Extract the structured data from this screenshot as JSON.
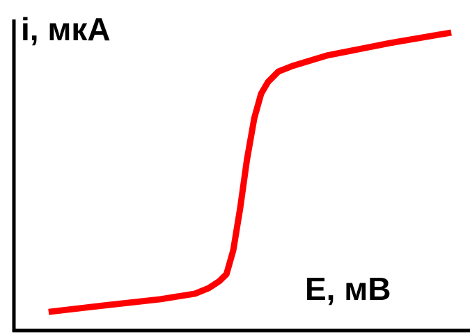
{
  "chart_data": {
    "type": "line",
    "ylabel": "i, мкА",
    "xlabel": "E, мВ",
    "xlim": [
      0,
      100
    ],
    "ylim": [
      0,
      100
    ],
    "series": [
      {
        "color": "#ff0000",
        "x": [
          7.6,
          19.8,
          32.1,
          39.7,
          42.7,
          45.0,
          46.6,
          48.1,
          49.6,
          51.1,
          52.7,
          54.2,
          55.7,
          58.0,
          61.1,
          68.7,
          82.4,
          95.9
        ],
        "values": [
          5.8,
          7.9,
          9.9,
          11.7,
          13.5,
          15.7,
          18.0,
          25.8,
          39.3,
          55.1,
          68.5,
          76.4,
          80.2,
          83.6,
          85.4,
          88.8,
          92.8,
          96.2
        ]
      }
    ]
  }
}
